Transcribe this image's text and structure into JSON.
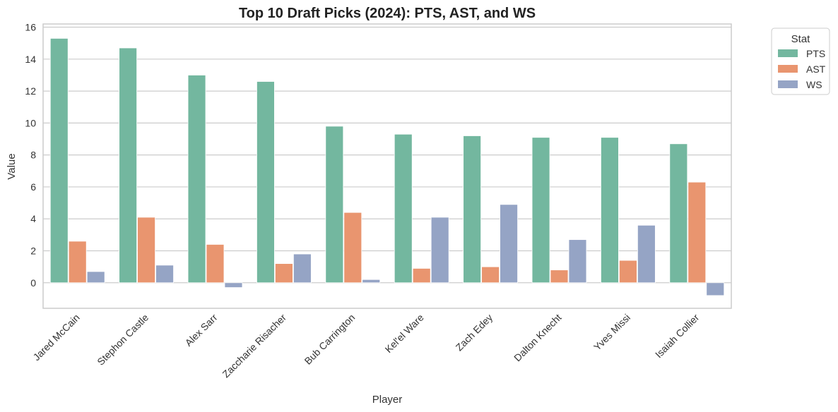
{
  "chart_data": {
    "type": "bar",
    "title": "Top 10 Draft Picks (2024): PTS, AST, and WS",
    "xlabel": "Player",
    "ylabel": "Value",
    "ylim": [
      -1.6,
      16.2
    ],
    "yticks": [
      0,
      2,
      4,
      6,
      8,
      10,
      12,
      14,
      16
    ],
    "grid": true,
    "legend_title": "Stat",
    "legend_position": "outside-top-right",
    "categories": [
      "Jared McCain",
      "Stephon Castle",
      "Alex Sarr",
      "Zaccharie Risacher",
      "Bub Carrington",
      "Kel'el Ware",
      "Zach Edey",
      "Dalton Knecht",
      "Yves Missi",
      "Isaiah Collier"
    ],
    "series": [
      {
        "name": "PTS",
        "color": "#73b79f",
        "values": [
          15.3,
          14.7,
          13.0,
          12.6,
          9.8,
          9.3,
          9.2,
          9.1,
          9.1,
          8.7
        ]
      },
      {
        "name": "AST",
        "color": "#e9956f",
        "values": [
          2.6,
          4.1,
          2.4,
          1.2,
          4.4,
          0.9,
          1.0,
          0.8,
          1.4,
          6.3
        ]
      },
      {
        "name": "WS",
        "color": "#95a4c5",
        "values": [
          0.7,
          1.1,
          -0.3,
          1.8,
          0.2,
          4.1,
          4.9,
          2.7,
          3.6,
          -0.8
        ]
      }
    ]
  }
}
